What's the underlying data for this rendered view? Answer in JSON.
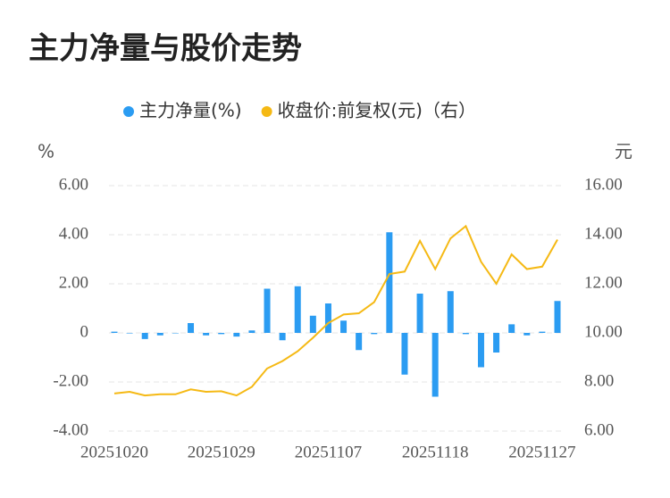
{
  "chart_data": {
    "type": "bar_line",
    "title": "主力净量与股价走势",
    "y_unit": "%",
    "y2_unit": "元",
    "categories": [
      "20251020",
      null,
      null,
      null,
      null,
      null,
      null,
      "20251029",
      null,
      null,
      null,
      null,
      null,
      null,
      "20251107",
      null,
      null,
      null,
      null,
      null,
      null,
      "20251118",
      null,
      null,
      null,
      null,
      null,
      null,
      "20251127",
      null
    ],
    "series": [
      {
        "name": "主力净量(%)",
        "color": "#2b9cf2",
        "kind": "bar",
        "values": [
          0.05,
          -0.02,
          -0.25,
          -0.1,
          0,
          0.4,
          -0.1,
          -0.05,
          -0.15,
          0.1,
          1.8,
          -0.3,
          1.9,
          0.7,
          1.2,
          0.5,
          -0.7,
          -0.05,
          4.1,
          -1.7,
          1.6,
          -2.6,
          1.7,
          -0.05,
          -1.4,
          -0.8,
          0.35,
          -0.1,
          0.05,
          1.3
        ]
      },
      {
        "name": "收盘价:前复权(元)（右）",
        "color": "#f5b914",
        "kind": "line",
        "axis": "y2",
        "values": [
          7.53,
          7.6,
          7.45,
          7.5,
          7.5,
          7.7,
          7.6,
          7.62,
          7.45,
          7.8,
          8.55,
          8.85,
          9.25,
          9.8,
          10.4,
          10.75,
          10.8,
          11.25,
          12.4,
          12.5,
          13.75,
          12.6,
          13.85,
          14.35,
          12.9,
          12.0,
          13.2,
          12.6,
          12.7,
          13.8
        ]
      }
    ],
    "ylim": [
      -4,
      6
    ],
    "yticks": [
      {
        "value": -4,
        "label": "-4.00"
      },
      {
        "value": -2,
        "label": "-2.00"
      },
      0,
      {
        "value": 2,
        "label": "2.00"
      },
      {
        "value": 4,
        "label": "4.00"
      },
      {
        "value": 6,
        "label": "6.00"
      }
    ],
    "y2lim": [
      6,
      16
    ],
    "y2ticks": [
      {
        "value": 6,
        "label": "6.00"
      },
      {
        "value": 8,
        "label": "8.00"
      },
      {
        "value": 10,
        "label": "10.00"
      },
      {
        "value": 12,
        "label": "12.00"
      },
      {
        "value": 14,
        "label": "14.00"
      },
      {
        "value": 16,
        "label": "16.00"
      }
    ],
    "grid": true
  }
}
